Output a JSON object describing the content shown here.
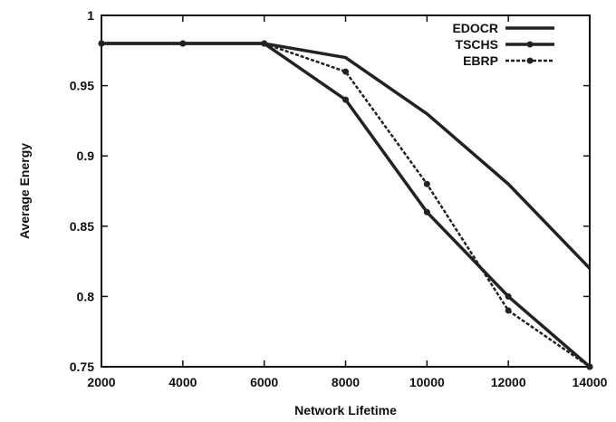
{
  "chart_data": {
    "type": "line",
    "xlabel": "Network Lifetime",
    "ylabel": "Average Energy",
    "x": [
      2000,
      4000,
      6000,
      8000,
      10000,
      12000,
      14000
    ],
    "xlim": [
      2000,
      14000
    ],
    "ylim": [
      0.75,
      1.0
    ],
    "xticks": [
      "2000",
      "4000",
      "6000",
      "8000",
      "10000",
      "12000",
      "14000"
    ],
    "yticks": [
      "0.75",
      "0.8",
      "0.85",
      "0.9",
      "0.95",
      "1"
    ],
    "grid": false,
    "legend_position": "top-right",
    "series": [
      {
        "name": "EDOCR",
        "values": [
          0.98,
          0.98,
          0.98,
          0.97,
          0.93,
          0.88,
          0.82
        ],
        "style": "solid",
        "marker": "none",
        "color": "#222222"
      },
      {
        "name": "TSCHS",
        "values": [
          0.98,
          0.98,
          0.98,
          0.94,
          0.86,
          0.8,
          0.75
        ],
        "style": "solid",
        "marker": "circle",
        "color": "#222222"
      },
      {
        "name": "EBRP",
        "values": [
          0.98,
          0.98,
          0.98,
          0.96,
          0.88,
          0.79,
          0.75
        ],
        "style": "dashed",
        "marker": "circle",
        "color": "#222222"
      }
    ]
  }
}
